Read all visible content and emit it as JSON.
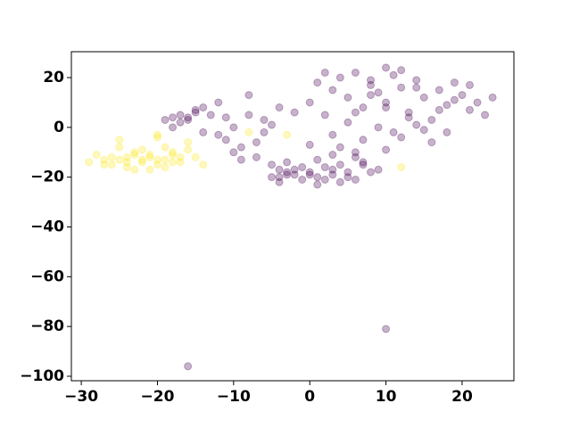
{
  "chart_data": {
    "type": "scatter",
    "xlim": [
      -31.3,
      26.8
    ],
    "ylim": [
      -101.8,
      30.4
    ],
    "xticks": [
      {
        "value": -30,
        "label": "−30"
      },
      {
        "value": -20,
        "label": "−20"
      },
      {
        "value": -10,
        "label": "−10"
      },
      0,
      10,
      20
    ],
    "yticks": [
      {
        "value": -100,
        "label": "−100"
      },
      {
        "value": -80,
        "label": "−80"
      },
      {
        "value": -60,
        "label": "−60"
      },
      {
        "value": -40,
        "label": "−40"
      },
      {
        "value": -20,
        "label": "−20"
      },
      0,
      20
    ],
    "grid": false,
    "series": [
      {
        "color": "#440154",
        "x": [
          -18,
          -17,
          -16,
          -15,
          -14,
          -17,
          -16,
          -15,
          -19,
          -13,
          -18,
          -14,
          -12,
          -11,
          -10,
          -9,
          -8,
          -7,
          -6,
          -5,
          -4,
          -3,
          -12,
          -10,
          -8,
          -6,
          -4,
          -2,
          -11,
          -9,
          -7,
          -5,
          0,
          1,
          2,
          3,
          4,
          5,
          6,
          7,
          8,
          9,
          10,
          11,
          12,
          13,
          14,
          15,
          16,
          17,
          18,
          19,
          20,
          21,
          22,
          23,
          24,
          3,
          5,
          7,
          9,
          11,
          13,
          15,
          17,
          19,
          21,
          2,
          4,
          6,
          8,
          10,
          12,
          14,
          16,
          18,
          0,
          6,
          10,
          14,
          8,
          12,
          -5,
          -4,
          -3,
          -2,
          -1,
          0,
          1,
          2,
          3,
          4,
          5,
          6,
          7,
          -3,
          -1,
          1,
          3,
          5,
          0,
          2,
          4,
          -2,
          6,
          8,
          -4,
          1,
          3,
          7,
          9,
          10,
          -16,
          10
        ],
        "y": [
          4,
          5,
          3,
          6,
          8,
          2,
          4,
          7,
          3,
          5,
          0,
          -2,
          10,
          -5,
          0,
          -8,
          5,
          -12,
          3,
          -15,
          8,
          -18,
          -3,
          -10,
          13,
          -2,
          -20,
          6,
          4,
          -13,
          -6,
          1,
          10,
          18,
          5,
          15,
          20,
          12,
          22,
          8,
          17,
          14,
          10,
          21,
          16,
          6,
          19,
          12,
          3,
          15,
          9,
          18,
          13,
          7,
          10,
          5,
          12,
          -3,
          2,
          -5,
          0,
          -2,
          4,
          -1,
          7,
          11,
          17,
          22,
          -8,
          -10,
          13,
          24,
          -4,
          1,
          -6,
          -2,
          -7,
          6,
          8,
          16,
          19,
          23,
          -20,
          -22,
          -19,
          -17,
          -21,
          -18,
          -20,
          -16,
          -19,
          -22,
          -18,
          -21,
          -15,
          -14,
          -16,
          -23,
          -17,
          -20,
          -19,
          -21,
          -15,
          -19,
          -12,
          -18,
          -17,
          -13,
          -11,
          -14,
          -17,
          -9,
          -96,
          -81
        ]
      },
      {
        "color": "#fde725",
        "x": [
          -29,
          -28,
          -27,
          -26,
          -25,
          -24,
          -23,
          -22,
          -21,
          -20,
          -19,
          -18,
          -17,
          -16,
          -15,
          -27,
          -25,
          -23,
          -21,
          -19,
          -17,
          -24,
          -22,
          -20,
          -18,
          -26,
          -24,
          -22,
          -20,
          -18,
          -21,
          -23,
          -19,
          -25,
          -16,
          -14,
          -8,
          12,
          -3,
          -20
        ],
        "y": [
          -14,
          -11,
          -15,
          -12,
          -13,
          -16,
          -10,
          -14,
          -12,
          -15,
          -13,
          -11,
          -14,
          -9,
          -12,
          -13,
          -8,
          -17,
          -11,
          -16,
          -12,
          -14,
          -13,
          -4,
          -10,
          -15,
          -12,
          -9,
          -13,
          -14,
          -17,
          -11,
          -8,
          -5,
          -6,
          -15,
          -2,
          -16,
          -3,
          -3
        ]
      }
    ]
  }
}
